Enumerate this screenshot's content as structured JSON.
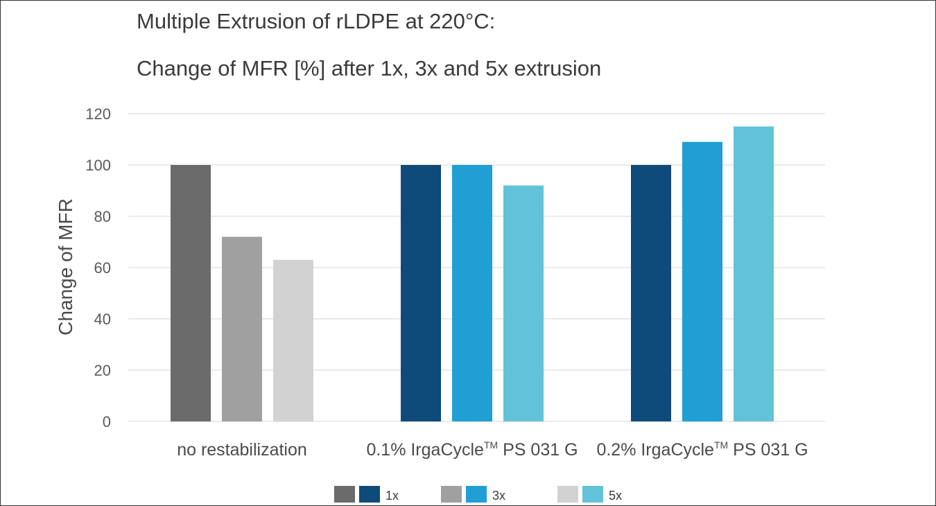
{
  "chart_data": {
    "type": "bar",
    "title": "Multiple Extrusion of rLDPE at 220°C:",
    "subtitle": "Change of MFR [%] after 1x, 3x and 5x extrusion",
    "ylabel": "Change of MFR",
    "xlabel": "",
    "ylim": [
      0,
      120
    ],
    "yticks": [
      0,
      20,
      40,
      60,
      80,
      100,
      120
    ],
    "grid": true,
    "legend_position": "bottom",
    "categories": [
      {
        "prefix": "no restabilization",
        "sup": "",
        "suffix": ""
      },
      {
        "prefix": "0.1% IrgaCycle",
        "sup": "TM",
        "suffix": " PS 031 G"
      },
      {
        "prefix": "0.2% IrgaCycle",
        "sup": "TM",
        "suffix": " PS 031 G"
      }
    ],
    "series": [
      {
        "name": "1x",
        "values": [
          100,
          100,
          100
        ],
        "colors": [
          "#6b6b6b",
          "#0e4a7a",
          "#0e4a7a"
        ]
      },
      {
        "name": "3x",
        "values": [
          72,
          100,
          109
        ],
        "colors": [
          "#a0a0a0",
          "#1f9fd3",
          "#1f9fd3"
        ]
      },
      {
        "name": "5x",
        "values": [
          63,
          92,
          115
        ],
        "colors": [
          "#d2d2d2",
          "#62c2d8",
          "#62c2d8"
        ]
      }
    ],
    "legend": [
      {
        "label": "1x",
        "gray": "#6b6b6b",
        "blue": "#0e4a7a"
      },
      {
        "label": "3x",
        "gray": "#a0a0a0",
        "blue": "#1f9fd3"
      },
      {
        "label": "5x",
        "gray": "#d2d2d2",
        "blue": "#62c2d8"
      }
    ]
  }
}
